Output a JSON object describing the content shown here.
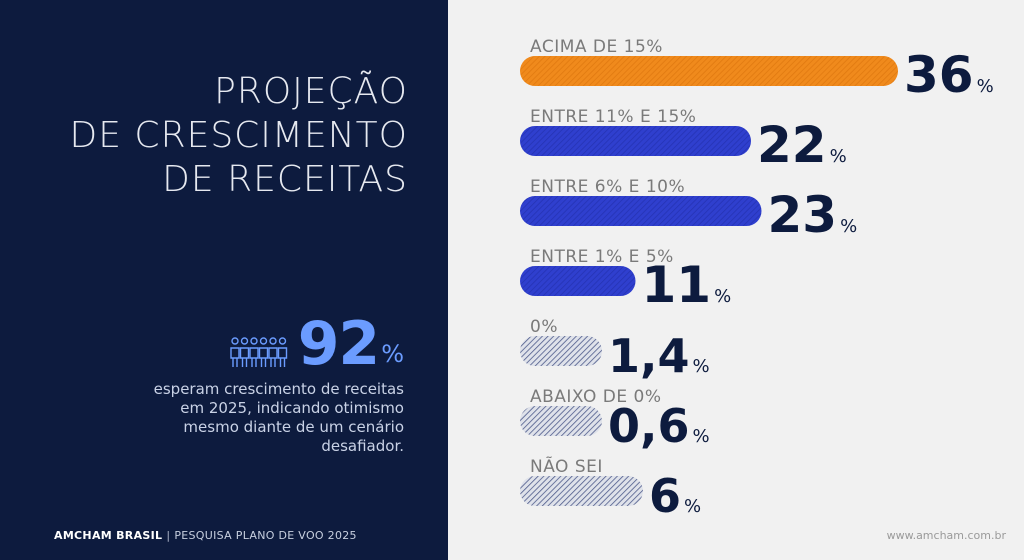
{
  "panel": {
    "title_lines": [
      "PROJEÇÃO",
      "DE CRESCIMENTO",
      "DE RECEITAS"
    ],
    "stat_value": "92",
    "stat_unit": "%",
    "stat_text": "esperam crescimento de receitas em 2025, indicando otimismo mesmo diante de um cenário desafiador.",
    "people_icon": "people-group-icon"
  },
  "footer": {
    "brand": "AMCHAM BRASIL",
    "separator": "|",
    "subtitle": "PESQUISA PLANO DE VOO 2025",
    "website": "www.amcham.com.br"
  },
  "colors": {
    "panel_bg": "#0d1b3e",
    "highlight": "#f08a1c",
    "primary_bar": "#2f3fce",
    "minor_bar": "#a9b0c4",
    "value_text": "#0d1b3e",
    "stat_accent": "#6b9cff"
  },
  "chart_data": {
    "type": "bar",
    "orientation": "horizontal",
    "title": "PROJEÇÃO DE CRESCIMENTO DE RECEITAS",
    "categories": [
      "ACIMA DE 15%",
      "ENTRE 11% E 15%",
      "ENTRE 6% E 10%",
      "ENTRE 1% E 5%",
      "0%",
      "ABAIXO DE 0%",
      "NÃO SEI"
    ],
    "values": [
      36,
      22,
      23,
      11,
      1.4,
      0.6,
      6
    ],
    "value_labels": [
      "36",
      "22",
      "23",
      "11",
      "1,4",
      "0,6",
      "6"
    ],
    "unit": "%",
    "bar_styles": [
      "highlight",
      "primary",
      "primary",
      "primary",
      "minor",
      "minor",
      "minor"
    ]
  }
}
